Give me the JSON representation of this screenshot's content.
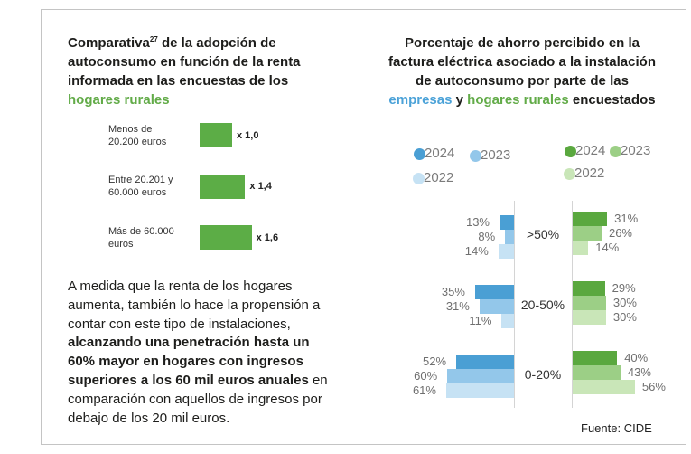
{
  "chart_data": [
    {
      "type": "bar",
      "orientation": "horizontal",
      "title": {
        "lead": "Comparativa",
        "footnote": "27",
        "line1_rest": " de la adopción de",
        "lines": [
          "autoconsumo en función de la renta",
          "informada en las encuestas de los"
        ],
        "highlight": "hogares rurales"
      },
      "categories": [
        "Menos de\n20.200 euros",
        "Entre 20.201 y\n60.000 euros",
        "Más de 60.000\neuros"
      ],
      "values": [
        1.0,
        1.4,
        1.6
      ],
      "labels": [
        "x 1,0",
        "x 1,4",
        "x 1,6"
      ],
      "color": "#5cad46",
      "grid": false
    },
    {
      "type": "bar",
      "orientation": "horizontal",
      "layout": "back-to-back",
      "title": {
        "lines": [
          "Porcentaje de ahorro percibido en la",
          "factura eléctrica asociado a la instalación",
          "de autoconsumo por parte de las"
        ],
        "connector": " y ",
        "suffix": " encuestados"
      },
      "categories": [
        ">50%",
        "20-50%",
        "0-20%"
      ],
      "groups": [
        {
          "name": "empresas",
          "color": "#4ba2d8",
          "series": [
            {
              "name": "2024",
              "values": [
                13,
                35,
                52
              ],
              "labels": [
                "13%",
                "35%",
                "52%"
              ],
              "color": "#4a9fd4"
            },
            {
              "name": "2023",
              "values": [
                8,
                31,
                60
              ],
              "labels": [
                "8%",
                "31%",
                "60%"
              ],
              "color": "#93c7ea"
            },
            {
              "name": "2022",
              "values": [
                14,
                11,
                61
              ],
              "labels": [
                "14%",
                "11%",
                "61%"
              ],
              "color": "#c6e2f4"
            }
          ]
        },
        {
          "name": "hogares rurales",
          "color": "#62ab48",
          "series": [
            {
              "name": "2024",
              "values": [
                31,
                29,
                40
              ],
              "labels": [
                "31%",
                "29%",
                "40%"
              ],
              "color": "#5aa83f"
            },
            {
              "name": "2023",
              "values": [
                26,
                30,
                43
              ],
              "labels": [
                "26%",
                "30%",
                "43%"
              ],
              "color": "#9ccf86"
            },
            {
              "name": "2022",
              "values": [
                14,
                30,
                56
              ],
              "labels": [
                "14%",
                "30%",
                "56%"
              ],
              "color": "#c9e6b8"
            }
          ]
        }
      ],
      "legend": "top",
      "grid": false
    }
  ],
  "paragraph": {
    "intro": [
      "A medida que la renta de los hogares",
      "aumenta, también lo hace la propensión a",
      "contar con este tipo de instalaciones,"
    ],
    "highlight": [
      "alcanzando una penetración hasta un",
      "60% mayor en hogares con ingresos",
      "superiores a los 60 mil euros anuales"
    ],
    "highlight_tail": " en",
    "outro": [
      "comparación con aquellos de ingresos por",
      "debajo de los 20 mil euros."
    ]
  },
  "footer": {
    "source": "Fuente: CIDE"
  }
}
